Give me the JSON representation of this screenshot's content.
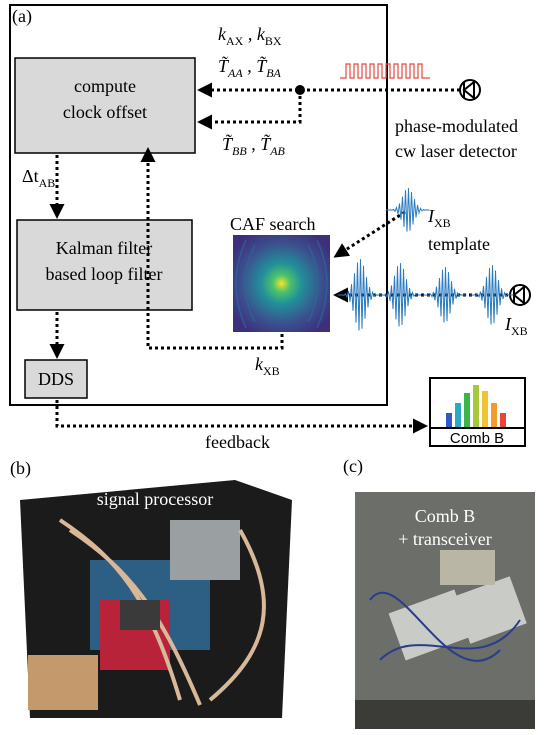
{
  "panel_a": {
    "label": "(a)",
    "k_top": [
      "k",
      "AX",
      " , ",
      "k",
      "BX"
    ],
    "t_top": [
      "T̃",
      "AA",
      " , ",
      "T̃",
      "BA"
    ],
    "t_bottom": [
      "T̃",
      "BB",
      " , ",
      "T̃",
      "AB"
    ],
    "compute_box": [
      "compute",
      "clock offset"
    ],
    "detector_label": [
      "phase-modulated",
      "cw laser detector"
    ],
    "delta_t": [
      "Δt",
      "AB"
    ],
    "kalman_box": [
      "Kalman filter",
      "based loop filter"
    ],
    "caf_label": "CAF search",
    "template_label": [
      "I",
      "XB",
      "template"
    ],
    "detector2_label": [
      "I",
      "XB"
    ],
    "dds": "DDS",
    "k_xb": [
      "k",
      "XB"
    ],
    "feedback": "feedback",
    "comb_label": "Comb B"
  },
  "panel_b": {
    "label": "(b)",
    "caption": "signal processor"
  },
  "panel_c": {
    "label": "(c)",
    "caption": [
      "Comb B",
      "+ transceiver"
    ]
  }
}
